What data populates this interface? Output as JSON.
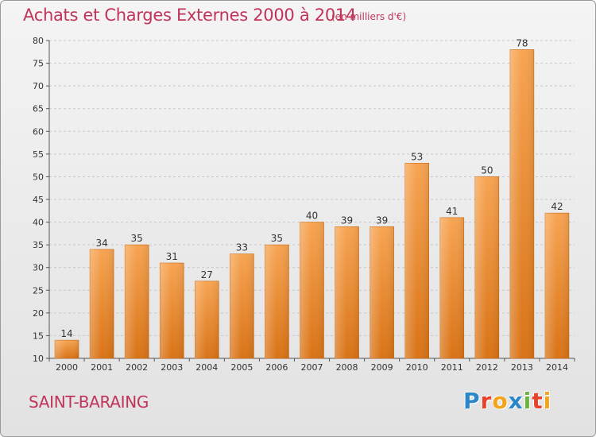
{
  "chart_data": {
    "type": "bar",
    "title": "Achats et Charges Externes 2000 à 2014",
    "subtitle": "(en milliers d'€)",
    "categories": [
      "2000",
      "2001",
      "2002",
      "2003",
      "2004",
      "2005",
      "2006",
      "2007",
      "2008",
      "2009",
      "2010",
      "2011",
      "2012",
      "2013",
      "2014"
    ],
    "values": [
      14,
      34,
      35,
      31,
      27,
      33,
      35,
      40,
      39,
      39,
      53,
      41,
      50,
      78,
      42
    ],
    "ylim": [
      10,
      80
    ],
    "yticks": [
      10,
      15,
      20,
      25,
      30,
      35,
      40,
      45,
      50,
      55,
      60,
      65,
      70,
      75,
      80
    ],
    "grid": true,
    "bar_color": "#f28a1e"
  },
  "footer": {
    "commune": "SAINT-BARAING",
    "logo_letters": [
      {
        "char": "P",
        "color": "#2b87c8"
      },
      {
        "char": "r",
        "color": "#e8412c"
      },
      {
        "char": "o",
        "color": "#f2a21b"
      },
      {
        "char": "x",
        "color": "#2b87c8"
      },
      {
        "char": "i",
        "color": "#6bb43a"
      },
      {
        "char": "t",
        "color": "#e8412c"
      },
      {
        "char": "i",
        "color": "#f2a21b"
      }
    ]
  }
}
